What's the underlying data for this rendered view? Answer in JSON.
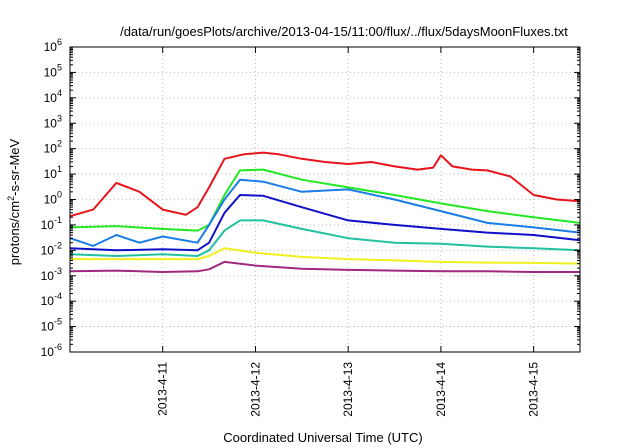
{
  "chart_data": {
    "type": "line",
    "title": "/data/run/goesPlots/archive/2013-04-15/11:00/flux/../flux/5daysMoonFluxes.txt",
    "xlabel": "Coordinated Universal Time (UTC)",
    "ylabel_base": "protons/cm",
    "ylabel_sup": "2",
    "ylabel_rest": "-s-sr-MeV",
    "y_scale": "log",
    "ylim": [
      1e-06,
      1000000.0
    ],
    "y_ticks": [
      {
        "value": 1e-06,
        "base": "10",
        "exp": "-6"
      },
      {
        "value": 1e-05,
        "base": "10",
        "exp": "-5"
      },
      {
        "value": 0.0001,
        "base": "10",
        "exp": "-4"
      },
      {
        "value": 0.001,
        "base": "10",
        "exp": "-3"
      },
      {
        "value": 0.01,
        "base": "10",
        "exp": "-2"
      },
      {
        "value": 0.1,
        "base": "10",
        "exp": "-1"
      },
      {
        "value": 1,
        "base": "10",
        "exp": "0"
      },
      {
        "value": 10,
        "base": "10",
        "exp": "1"
      },
      {
        "value": 100,
        "base": "10",
        "exp": "2"
      },
      {
        "value": 1000,
        "base": "10",
        "exp": "3"
      },
      {
        "value": 10000,
        "base": "10",
        "exp": "4"
      },
      {
        "value": 100000,
        "base": "10",
        "exp": "5"
      },
      {
        "value": 1000000,
        "base": "10",
        "exp": "6"
      }
    ],
    "xlim": [
      "2013-04-10T00:00",
      "2013-04-15T12:00"
    ],
    "x_ticks": [
      "2013-4-11",
      "2013-4-12",
      "2013-4-13",
      "2013-4-14",
      "2013-4-15"
    ],
    "x_tick_dates": [
      "2013-04-11T00:00",
      "2013-04-12T00:00",
      "2013-04-13T00:00",
      "2013-04-14T00:00",
      "2013-04-15T00:00"
    ],
    "grid": true,
    "series": [
      {
        "color": "#e8141c",
        "x": [
          "2013-04-10T00:00",
          "2013-04-10T06:00",
          "2013-04-10T12:00",
          "2013-04-10T18:00",
          "2013-04-11T00:00",
          "2013-04-11T06:00",
          "2013-04-11T09:00",
          "2013-04-11T12:00",
          "2013-04-11T16:00",
          "2013-04-11T21:00",
          "2013-04-12T02:00",
          "2013-04-12T06:00",
          "2013-04-12T12:00",
          "2013-04-12T18:00",
          "2013-04-13T00:00",
          "2013-04-13T06:00",
          "2013-04-13T12:00",
          "2013-04-13T18:00",
          "2013-04-13T22:00",
          "2013-04-14T00:00",
          "2013-04-14T03:00",
          "2013-04-14T08:00",
          "2013-04-14T12:00",
          "2013-04-14T18:00",
          "2013-04-15T00:00",
          "2013-04-15T06:00",
          "2013-04-15T12:00"
        ],
        "y": [
          0.22,
          0.4,
          4.5,
          2.0,
          0.4,
          0.25,
          0.5,
          3.0,
          40,
          60,
          70,
          60,
          40,
          30,
          25,
          30,
          20,
          15,
          18,
          55,
          20,
          15,
          14,
          8,
          1.5,
          1.0,
          0.85
        ]
      },
      {
        "color": "#22e822",
        "x": [
          "2013-04-10T00:00",
          "2013-04-10T12:00",
          "2013-04-11T00:00",
          "2013-04-11T09:00",
          "2013-04-11T12:00",
          "2013-04-11T16:00",
          "2013-04-11T20:00",
          "2013-04-12T02:00",
          "2013-04-12T12:00",
          "2013-04-13T00:00",
          "2013-04-13T12:00",
          "2013-04-14T00:00",
          "2013-04-14T12:00",
          "2013-04-15T00:00",
          "2013-04-15T12:00"
        ],
        "y": [
          0.08,
          0.09,
          0.07,
          0.06,
          0.1,
          1.5,
          14,
          15,
          6,
          3,
          1.5,
          0.7,
          0.35,
          0.2,
          0.12
        ]
      },
      {
        "color": "#1a7de8",
        "x": [
          "2013-04-10T00:00",
          "2013-04-10T06:00",
          "2013-04-10T12:00",
          "2013-04-10T18:00",
          "2013-04-11T00:00",
          "2013-04-11T09:00",
          "2013-04-11T12:00",
          "2013-04-11T16:00",
          "2013-04-11T20:00",
          "2013-04-12T02:00",
          "2013-04-12T12:00",
          "2013-04-13T00:00",
          "2013-04-13T12:00",
          "2013-04-14T00:00",
          "2013-04-14T12:00",
          "2013-04-15T00:00",
          "2013-04-15T12:00"
        ],
        "y": [
          0.03,
          0.015,
          0.04,
          0.02,
          0.035,
          0.02,
          0.1,
          1.0,
          6,
          5,
          2,
          2.5,
          1.0,
          0.35,
          0.12,
          0.08,
          0.05
        ]
      },
      {
        "color": "#1010c8",
        "x": [
          "2013-04-10T00:00",
          "2013-04-10T12:00",
          "2013-04-11T00:00",
          "2013-04-11T09:00",
          "2013-04-11T12:00",
          "2013-04-11T16:00",
          "2013-04-11T20:00",
          "2013-04-12T02:00",
          "2013-04-12T12:00",
          "2013-04-13T00:00",
          "2013-04-13T12:00",
          "2013-04-14T00:00",
          "2013-04-14T12:00",
          "2013-04-15T00:00",
          "2013-04-15T12:00"
        ],
        "y": [
          0.012,
          0.01,
          0.011,
          0.01,
          0.02,
          0.3,
          1.5,
          1.4,
          0.5,
          0.15,
          0.1,
          0.07,
          0.05,
          0.04,
          0.025
        ]
      },
      {
        "color": "#20c0a0",
        "x": [
          "2013-04-10T00:00",
          "2013-04-10T12:00",
          "2013-04-11T00:00",
          "2013-04-11T09:00",
          "2013-04-11T12:00",
          "2013-04-11T16:00",
          "2013-04-11T20:00",
          "2013-04-12T02:00",
          "2013-04-12T12:00",
          "2013-04-13T00:00",
          "2013-04-13T12:00",
          "2013-04-14T00:00",
          "2013-04-14T12:00",
          "2013-04-15T00:00",
          "2013-04-15T12:00"
        ],
        "y": [
          0.007,
          0.006,
          0.007,
          0.006,
          0.01,
          0.06,
          0.15,
          0.15,
          0.07,
          0.03,
          0.02,
          0.018,
          0.014,
          0.012,
          0.01
        ]
      },
      {
        "color": "#f0f020",
        "x": [
          "2013-04-10T00:00",
          "2013-04-10T12:00",
          "2013-04-11T00:00",
          "2013-04-11T09:00",
          "2013-04-11T12:00",
          "2013-04-11T16:00",
          "2013-04-12T00:00",
          "2013-04-12T12:00",
          "2013-04-13T00:00",
          "2013-04-13T12:00",
          "2013-04-14T00:00",
          "2013-04-14T12:00",
          "2013-04-15T00:00",
          "2013-04-15T12:00"
        ],
        "y": [
          0.0045,
          0.0045,
          0.0045,
          0.0045,
          0.006,
          0.012,
          0.008,
          0.0055,
          0.0045,
          0.004,
          0.0035,
          0.0033,
          0.0032,
          0.003
        ]
      },
      {
        "color": "#a02880",
        "x": [
          "2013-04-10T00:00",
          "2013-04-10T12:00",
          "2013-04-11T00:00",
          "2013-04-11T09:00",
          "2013-04-11T12:00",
          "2013-04-11T16:00",
          "2013-04-12T00:00",
          "2013-04-12T12:00",
          "2013-04-13T00:00",
          "2013-04-13T12:00",
          "2013-04-14T00:00",
          "2013-04-14T12:00",
          "2013-04-15T00:00",
          "2013-04-15T12:00"
        ],
        "y": [
          0.0015,
          0.0016,
          0.0014,
          0.0015,
          0.0018,
          0.0035,
          0.0025,
          0.0019,
          0.0017,
          0.0016,
          0.0015,
          0.0015,
          0.0014,
          0.0014
        ]
      }
    ]
  }
}
